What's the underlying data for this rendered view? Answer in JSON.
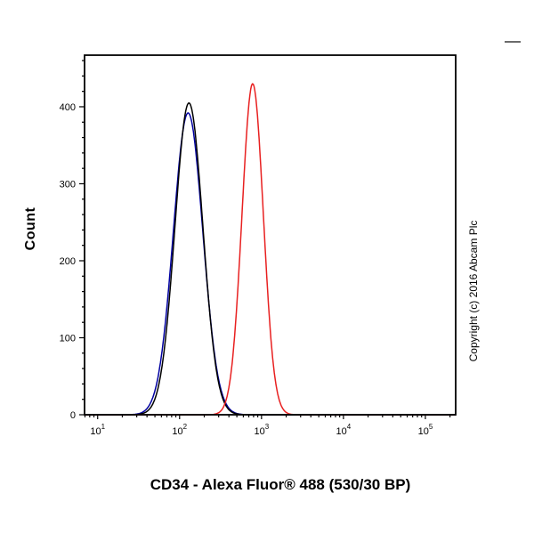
{
  "page": {
    "copyright": "Copyright (c) 2016 Abcam Plc"
  },
  "chart_data": {
    "type": "line",
    "subtype": "flow-cytometry-histogram",
    "title": "CD34 - Alexa Fluor® 488 (530/30 BP)",
    "xlabel": "CD34 - Alexa Fluor® 488 (530/30 BP)",
    "ylabel": "Count",
    "x_scale": "log10",
    "xlim_log10": [
      0.84,
      5.37
    ],
    "ylim": [
      0,
      467
    ],
    "yticks": [
      0,
      100,
      200,
      300,
      400
    ],
    "ytick_minor_step": 20,
    "xtick_exponents": [
      1,
      2,
      3,
      4,
      5
    ],
    "grid": false,
    "legend": "none",
    "series": [
      {
        "name": "blue-curve",
        "color": "#0000a0",
        "peak_x": 127,
        "peak_count": 392,
        "sigma_log10": 0.18
      },
      {
        "name": "black-curve",
        "color": "#000000",
        "peak_x": 130,
        "peak_count": 405,
        "sigma_log10": 0.17
      },
      {
        "name": "red-curve",
        "color": "#e82020",
        "peak_x": 780,
        "peak_count": 430,
        "sigma_log10": 0.13
      }
    ]
  }
}
